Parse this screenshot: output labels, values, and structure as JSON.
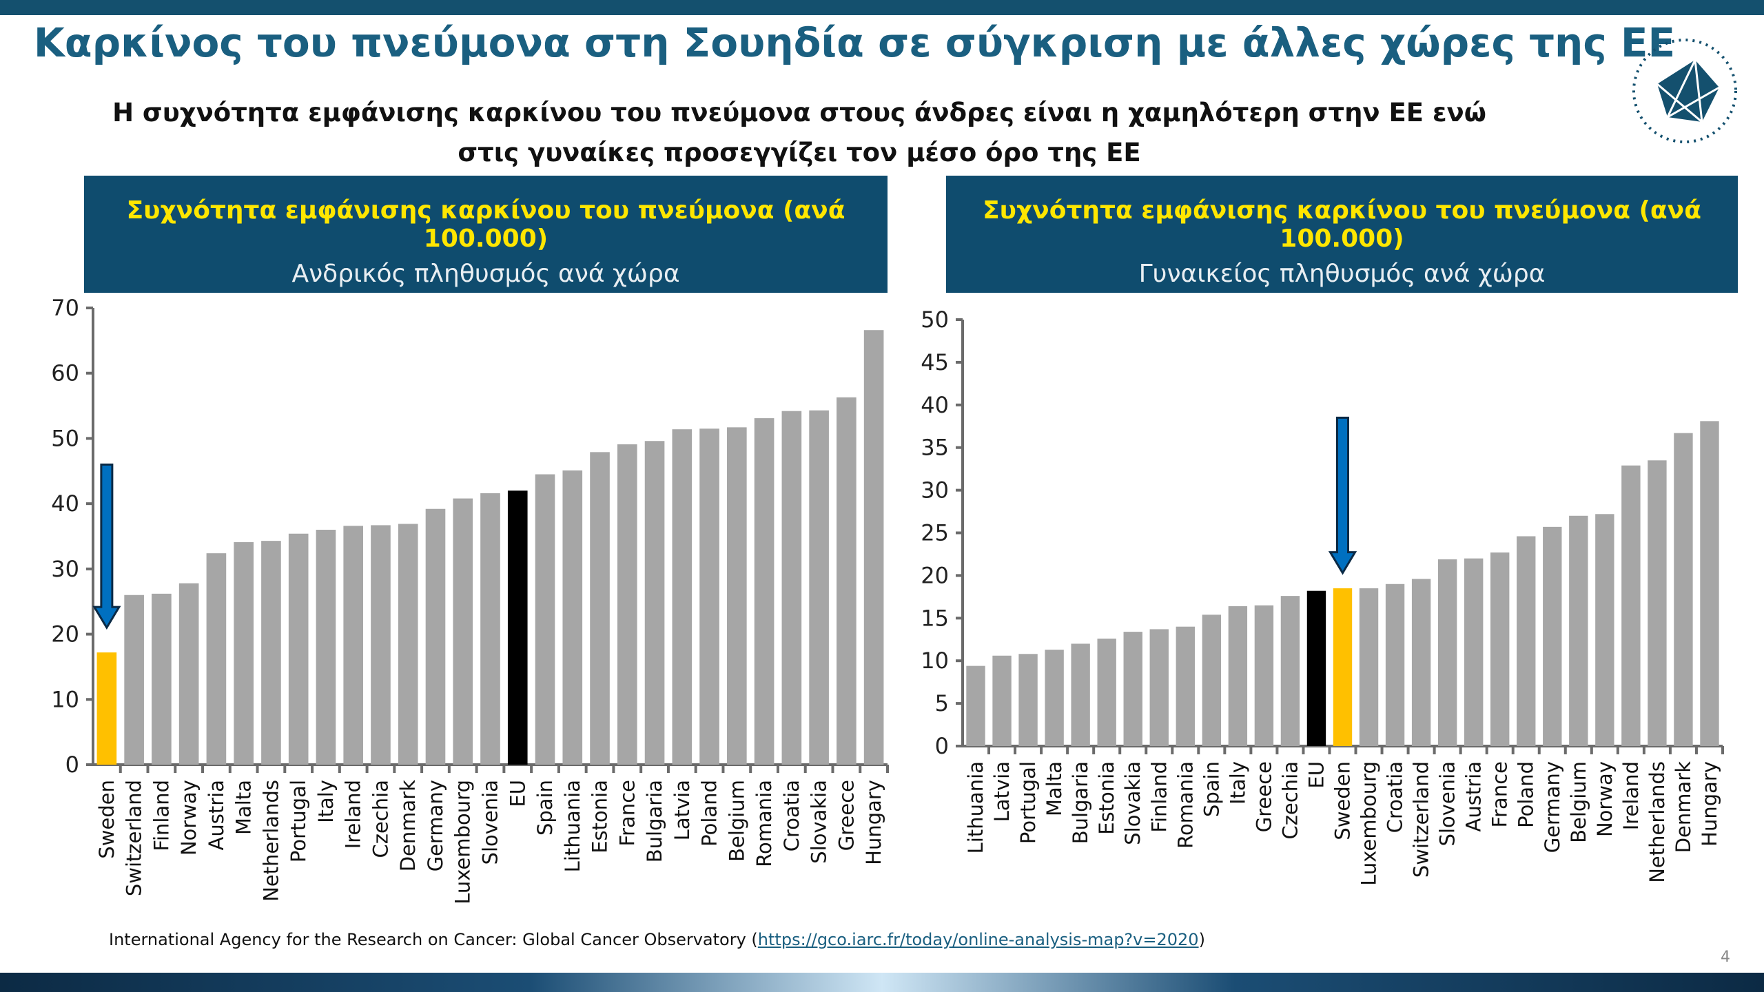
{
  "title": "Καρκίνος του πνεύμονα στη Σουηδία σε σύγκριση με άλλες χώρες της ΕΕ",
  "subtitle": [
    "Η συχνότητα εμφάνισης καρκίνου του πνεύμονα στους άνδρες είναι η χαμηλότερη στην ΕΕ ενώ",
    "στις γυναίκες προσεγγίζει τον μέσο όρο της ΕΕ"
  ],
  "colors": {
    "bar": "#a6a6a6",
    "highlight": "#ffc000",
    "eu": "#000000",
    "arrow": "#0070c0",
    "header": "#0f4c6e"
  },
  "chart_data": [
    {
      "type": "bar",
      "title": "Συχνότητα εμφάνισης καρκίνου του πνεύμονα (ανά 100.000)",
      "subtitle": "Ανδρικός πληθυσμός ανά χώρα",
      "ylim": [
        0,
        70
      ],
      "yticks": [
        "0",
        "10",
        "20",
        "30",
        "40",
        "50",
        "60",
        "70"
      ],
      "highlight": "Sweden",
      "eu": "EU",
      "categories": [
        "Sweden",
        "Switzerland",
        "Finland",
        "Norway",
        "Austria",
        "Malta",
        "Netherlands",
        "Portugal",
        "Italy",
        "Ireland",
        "Czechia",
        "Denmark",
        "Germany",
        "Luxembourg",
        "Slovenia",
        "EU",
        "Spain",
        "Lithuania",
        "Estonia",
        "France",
        "Bulgaria",
        "Latvia",
        "Poland",
        "Belgium",
        "Romania",
        "Croatia",
        "Slovakia",
        "Greece",
        "Hungary"
      ],
      "values": [
        17.2,
        26.0,
        26.2,
        27.8,
        32.4,
        34.1,
        34.3,
        35.4,
        36.0,
        36.6,
        36.7,
        36.9,
        39.2,
        40.8,
        41.6,
        42.0,
        44.5,
        45.1,
        47.9,
        49.1,
        49.6,
        51.4,
        51.5,
        51.7,
        53.1,
        54.2,
        54.3,
        56.3,
        66.6
      ]
    },
    {
      "type": "bar",
      "title": "Συχνότητα εμφάνισης καρκίνου του πνεύμονα (ανά 100.000)",
      "subtitle": "Γυναικείος πληθυσμός ανά χώρα",
      "ylim": [
        0,
        50
      ],
      "yticks": [
        "0",
        "5",
        "10",
        "15",
        "20",
        "25",
        "30",
        "35",
        "40",
        "45",
        "50"
      ],
      "highlight": "Sweden",
      "eu": "EU",
      "categories": [
        "Lithuania",
        "Latvia",
        "Portugal",
        "Malta",
        "Bulgaria",
        "Estonia",
        "Slovakia",
        "Finland",
        "Romania",
        "Spain",
        "Italy",
        "Greece",
        "Czechia",
        "EU",
        "Sweden",
        "Luxembourg",
        "Croatia",
        "Switzerland",
        "Slovenia",
        "Austria",
        "France",
        "Poland",
        "Germany",
        "Belgium",
        "Norway",
        "Ireland",
        "Netherlands",
        "Denmark",
        "Hungary"
      ],
      "values": [
        9.4,
        10.6,
        10.8,
        11.3,
        12.0,
        12.6,
        13.4,
        13.7,
        14.0,
        15.4,
        16.4,
        16.5,
        17.6,
        18.2,
        18.5,
        18.5,
        19.0,
        19.6,
        21.9,
        22.0,
        22.7,
        24.6,
        25.7,
        27.0,
        27.2,
        32.9,
        33.5,
        36.7,
        38.1
      ]
    }
  ],
  "footer": {
    "source": "International Agency for the Research on Cancer: Global Cancer Observatory (",
    "link": "https://gco.iarc.fr/today/online-analysis-map?v=2020",
    "close": ")"
  },
  "page_number": "4"
}
